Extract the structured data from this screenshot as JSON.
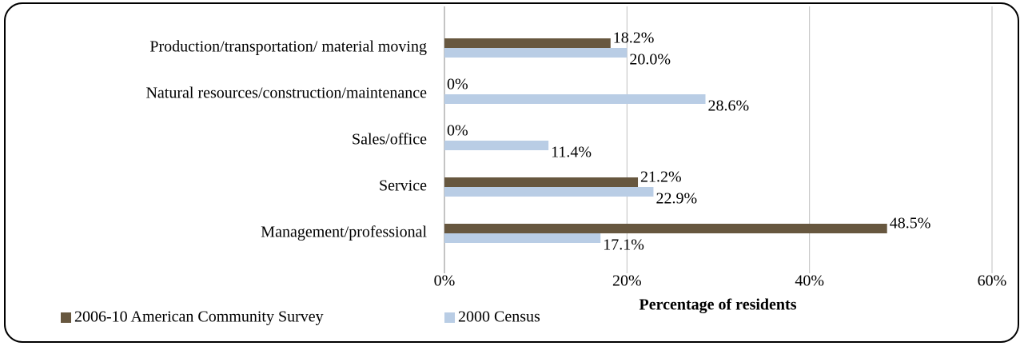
{
  "chart_data": {
    "type": "bar",
    "orientation": "horizontal",
    "categories": [
      "Production/transportation/ material moving",
      "Natural resources/construction/maintenance",
      "Sales/office",
      "Service",
      "Management/professional"
    ],
    "series": [
      {
        "name": "2006-10 American Community Survey",
        "color": "#67573f",
        "values": [
          18.2,
          0,
          0,
          21.2,
          48.5
        ],
        "value_labels": [
          "18.2%",
          "0%",
          "0%",
          "21.2%",
          "48.5%"
        ]
      },
      {
        "name": "2000 Census",
        "color": "#b9cde5",
        "values": [
          20.0,
          28.6,
          11.4,
          22.9,
          17.1
        ],
        "value_labels": [
          "20.0%",
          "28.6%",
          "11.4%",
          "22.9%",
          "17.1%"
        ]
      }
    ],
    "x_label": "Percentage of residents",
    "xlim": [
      0,
      60
    ],
    "xticks": [
      {
        "value": 0,
        "label": "0%"
      },
      {
        "value": 20,
        "label": "20%"
      },
      {
        "value": 40,
        "label": "40%"
      },
      {
        "value": 60,
        "label": "60%"
      }
    ],
    "grid": true,
    "legend": "bottom"
  }
}
